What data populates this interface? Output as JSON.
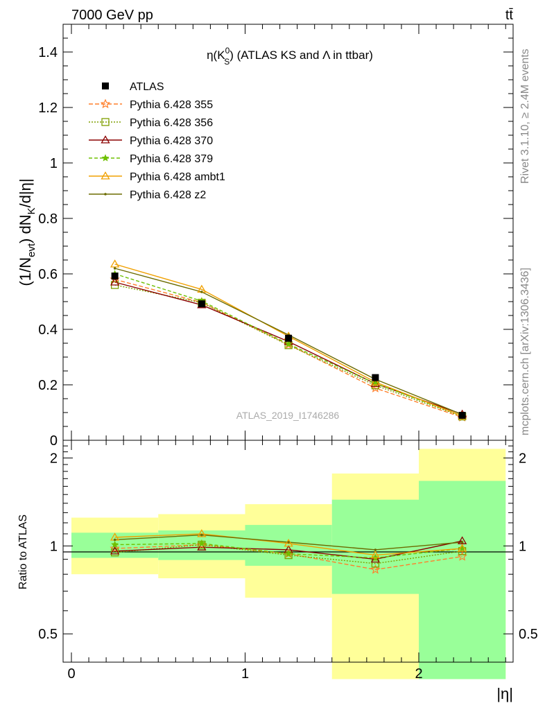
{
  "header": {
    "left": "7000 GeV pp",
    "right": "tt̄"
  },
  "side": {
    "rivet": "Rivet 3.1.10, ≥ 2.4M events",
    "mcplots": "mcplots.cern.ch [arXiv:1306.3436]"
  },
  "chart_data": [
    {
      "type": "line",
      "title_parts": {
        "a": "η(K",
        "sup": "0",
        "sub": "S",
        "b": ") (ATLAS KS and Λ in ttbar)"
      },
      "analysis": "ATLAS_2019_I1746286",
      "ylabel_parts": {
        "a": "(1/N",
        "sub1": "evt",
        "b": ") dN",
        "sub2": "K",
        "c": "/d|η|"
      },
      "xlabel": "|η|",
      "xlim": [
        0,
        2.5
      ],
      "ylim": [
        0,
        1.5
      ],
      "xticks": [
        0,
        1,
        2
      ],
      "yticks": [
        0,
        0.2,
        0.4,
        0.6,
        0.8,
        1,
        1.2,
        1.4
      ],
      "ytick_labels": [
        "0",
        "0.2",
        "0.4",
        "0.6",
        "0.8",
        "1",
        "1.2",
        "1.4"
      ],
      "x": [
        0.25,
        0.75,
        1.25,
        1.75,
        2.25
      ],
      "data": {
        "name": "ATLAS",
        "values": [
          0.592,
          0.492,
          0.368,
          0.226,
          0.09
        ],
        "color": "#000000",
        "marker": "square"
      },
      "series": [
        {
          "name": "Pythia 6.428 355",
          "values": [
            0.58,
            0.497,
            0.345,
            0.188,
            0.083
          ],
          "color": "#ff7f2a",
          "marker": "star-open",
          "dash": "6,3"
        },
        {
          "name": "Pythia 6.428 356",
          "values": [
            0.56,
            0.496,
            0.343,
            0.198,
            0.086
          ],
          "color": "#7f9f00",
          "marker": "square-open",
          "dash": "2,2"
        },
        {
          "name": "Pythia 6.428 370",
          "values": [
            0.57,
            0.488,
            0.356,
            0.204,
            0.094
          ],
          "color": "#8b0000",
          "marker": "triangle-open",
          "dash": ""
        },
        {
          "name": "Pythia 6.428 379",
          "values": [
            0.6,
            0.502,
            0.347,
            0.205,
            0.088
          ],
          "color": "#6fc000",
          "marker": "star",
          "dash": "5,3"
        },
        {
          "name": "Pythia 6.428 ambt1",
          "values": [
            0.635,
            0.544,
            0.375,
            0.21,
            0.088
          ],
          "color": "#f0a000",
          "marker": "triangle-open",
          "dash": ""
        },
        {
          "name": "Pythia 6.428 z2",
          "values": [
            0.62,
            0.535,
            0.38,
            0.22,
            0.093
          ],
          "color": "#6b6b00",
          "marker": "dot",
          "dash": ""
        }
      ]
    },
    {
      "type": "line",
      "ylabel": "Ratio to ATLAS",
      "yscale": "log",
      "ylim": [
        0.4,
        2.3
      ],
      "yticks": [
        0.5,
        1,
        2
      ],
      "ytick_labels": [
        "0.5",
        "1",
        "2"
      ],
      "xticks": [
        0,
        1,
        2
      ],
      "xtick_labels": [
        "0",
        "1",
        "2"
      ],
      "bands": [
        {
          "x0": 0,
          "x1": 0.5,
          "inner": [
            0.91,
            1.11
          ],
          "outer": [
            0.8,
            1.25
          ]
        },
        {
          "x0": 0.5,
          "x1": 1.0,
          "inner": [
            0.895,
            1.13
          ],
          "outer": [
            0.775,
            1.285
          ]
        },
        {
          "x0": 1.0,
          "x1": 1.5,
          "inner": [
            0.855,
            1.18
          ],
          "outer": [
            0.665,
            1.39
          ]
        },
        {
          "x0": 1.5,
          "x1": 2.0,
          "inner": [
            0.685,
            1.44
          ],
          "outer": [
            0.35,
            1.77
          ]
        },
        {
          "x0": 2.0,
          "x1": 2.5,
          "inner": [
            0.35,
            1.67
          ],
          "outer": [
            0.35,
            2.15
          ]
        }
      ],
      "band_colors": {
        "inner": "#99ff99",
        "outer": "#ffff99"
      },
      "ratio_series": [
        {
          "name": "Pythia 6.428 355",
          "values": [
            0.98,
            1.01,
            0.94,
            0.83,
            0.92
          ]
        },
        {
          "name": "Pythia 6.428 356",
          "values": [
            0.95,
            1.01,
            0.93,
            0.87,
            0.96
          ]
        },
        {
          "name": "Pythia 6.428 370",
          "values": [
            0.96,
            0.99,
            0.97,
            0.9,
            1.04
          ]
        },
        {
          "name": "Pythia 6.428 379",
          "values": [
            1.01,
            1.02,
            0.94,
            0.91,
            0.98
          ]
        },
        {
          "name": "Pythia 6.428 ambt1",
          "values": [
            1.07,
            1.1,
            1.02,
            0.93,
            0.98
          ]
        },
        {
          "name": "Pythia 6.428 z2",
          "values": [
            1.05,
            1.09,
            1.03,
            0.97,
            1.03
          ]
        }
      ]
    }
  ]
}
